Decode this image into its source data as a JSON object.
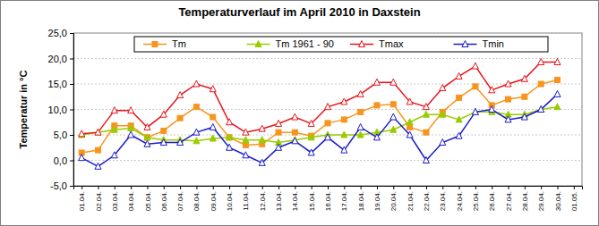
{
  "chart_data": {
    "type": "line",
    "title": "Temperaturverlauf im April 2010 in Daxstein",
    "y_label": "Temperatur in °C",
    "categories": [
      "01.04.",
      "02.04.",
      "03.04.",
      "04.04.",
      "05.04.",
      "06.04.",
      "07.04.",
      "08.04.",
      "09.04.",
      "10.04.",
      "11.04.",
      "12.04.",
      "13.04.",
      "14.04.",
      "15.04.",
      "16.04.",
      "17.04.",
      "18.04.",
      "19.04.",
      "20.04.",
      "21.04.",
      "22.04.",
      "23.04.",
      "24.04.",
      "25.04.",
      "26.04.",
      "27.04.",
      "28.04.",
      "29.04.",
      "30.04.",
      "01.05."
    ],
    "series": [
      {
        "name": "Tm",
        "color": "#f7941d",
        "marker": "square",
        "values": [
          1.5,
          2.0,
          6.8,
          6.8,
          4.5,
          5.8,
          8.3,
          10.5,
          8.5,
          4.5,
          3.0,
          3.2,
          5.5,
          5.5,
          4.8,
          7.3,
          8.0,
          9.5,
          10.8,
          11.0,
          6.5,
          5.5,
          9.5,
          12.3,
          14.5,
          10.8,
          12.0,
          12.5,
          15.0,
          15.8,
          null
        ]
      },
      {
        "name": "Tm 1961 - 90",
        "color": "#99cc00",
        "marker": "triangle",
        "values": [
          5.0,
          5.5,
          6.0,
          6.3,
          4.5,
          4.0,
          4.0,
          3.8,
          4.3,
          4.5,
          4.0,
          4.0,
          3.5,
          4.0,
          4.5,
          5.0,
          5.0,
          5.0,
          5.5,
          6.0,
          7.5,
          9.0,
          9.0,
          8.0,
          9.5,
          9.5,
          9.0,
          9.0,
          10.0,
          10.5,
          null
        ]
      },
      {
        "name": "Tmax",
        "color": "#e8141b",
        "marker": "triangle",
        "values": [
          5.2,
          5.5,
          9.8,
          9.8,
          6.5,
          9.0,
          12.8,
          15.0,
          14.0,
          7.5,
          5.5,
          6.2,
          7.2,
          8.5,
          7.2,
          10.5,
          11.5,
          13.0,
          15.3,
          15.3,
          11.5,
          10.5,
          14.2,
          16.5,
          18.5,
          13.8,
          15.0,
          16.0,
          19.3,
          19.3,
          null
        ]
      },
      {
        "name": "Tmin",
        "color": "#1a1acc",
        "marker": "triangle",
        "values": [
          0.5,
          -1.2,
          1.0,
          5.0,
          3.2,
          3.5,
          3.5,
          5.5,
          6.5,
          2.5,
          1.0,
          -0.5,
          2.5,
          3.8,
          1.5,
          4.5,
          2.0,
          6.5,
          4.5,
          8.5,
          5.0,
          0.0,
          3.5,
          4.8,
          9.5,
          10.0,
          8.0,
          8.5,
          10.0,
          13.0,
          null
        ]
      }
    ],
    "ylim": [
      -5,
      25
    ],
    "yticks": [
      {
        "value": -5,
        "label": "-5,0"
      },
      {
        "value": 0,
        "label": "0,0"
      },
      {
        "value": 5,
        "label": "5,0"
      },
      {
        "value": 10,
        "label": "10,0"
      },
      {
        "value": 15,
        "label": "15,0"
      },
      {
        "value": 20,
        "label": "20,0"
      },
      {
        "value": 25,
        "label": "25,0"
      }
    ],
    "grid": true,
    "legend": "top"
  }
}
